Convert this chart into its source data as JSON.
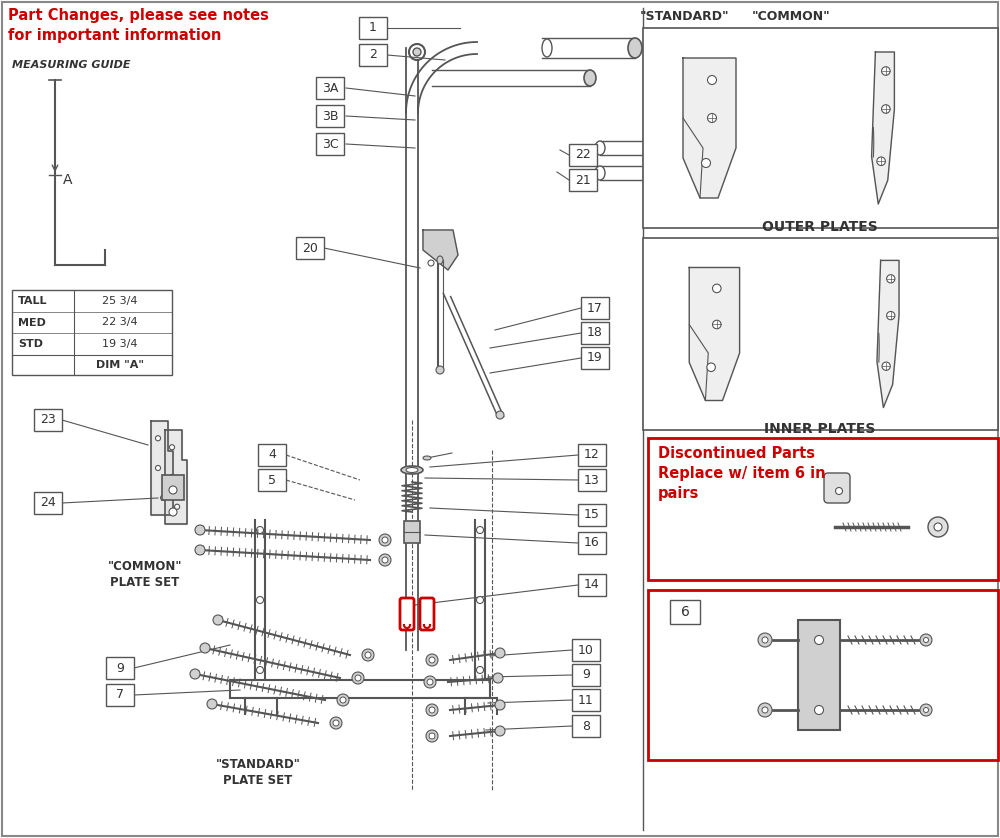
{
  "bg_color": "#ffffff",
  "red_color": "#cc0000",
  "dark_color": "#333333",
  "line_color": "#555555",
  "gray_fill": "#d0d0d0",
  "light_gray": "#e8e8e8",
  "header_text_line1": "Part Changes, please see notes",
  "header_text_line2": "for important information",
  "measuring_guide_text": "MEASURING GUIDE",
  "table_rows": [
    [
      "STD",
      "19 3/4"
    ],
    [
      "MED",
      "22 3/4"
    ],
    [
      "TALL",
      "25 3/4"
    ]
  ],
  "standard_label": "\"STANDARD\"",
  "common_label": "\"COMMON\"",
  "outer_plates_label": "OUTER PLATES",
  "inner_plates_label": "INNER PLATES",
  "discontinued_line1": "Discontinued Parts",
  "discontinued_line2": "Replace w/ item 6 in",
  "discontinued_line3": "pairs",
  "common_plate_label": "\"COMMON\"\nPLATE SET",
  "standard_plate_label": "\"STANDARD\"\nPLATE SET"
}
